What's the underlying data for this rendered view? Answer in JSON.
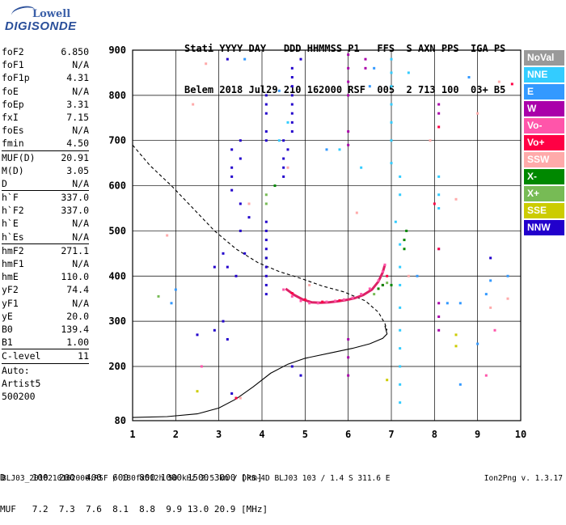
{
  "logo": {
    "line1": "Lowell",
    "line2": "DIGISONDE"
  },
  "header": {
    "line1": "Stati YYYY DAY   DDD HHMMSS P1   FFS  S AXN PPS  IGA PS",
    "line2": "Belem 2018 Jul29 210 162000 RSF  005  2 713 100  03+ B5"
  },
  "params": [
    {
      "label": "foF2",
      "value": "6.850"
    },
    {
      "label": "foF1",
      "value": "N/A"
    },
    {
      "label": "foF1p",
      "value": "4.31"
    },
    {
      "label": "foE",
      "value": "N/A"
    },
    {
      "label": "foEp",
      "value": "3.31"
    },
    {
      "label": "fxI",
      "value": "7.15"
    },
    {
      "label": "foEs",
      "value": "N/A"
    },
    {
      "label": "fmin",
      "value": "4.50"
    },
    {
      "label": "MUF(D)",
      "value": "20.91",
      "sep": true
    },
    {
      "label": "M(D)",
      "value": "3.05"
    },
    {
      "label": "D",
      "value": "N/A"
    },
    {
      "label": "h`F",
      "value": "337.0",
      "sep": true
    },
    {
      "label": "h`F2",
      "value": "337.0"
    },
    {
      "label": "h`E",
      "value": "N/A"
    },
    {
      "label": "h`Es",
      "value": "N/A"
    },
    {
      "label": "hmF2",
      "value": "271.1",
      "sep": true
    },
    {
      "label": "hmF1",
      "value": "N/A"
    },
    {
      "label": "hmE",
      "value": "110.0"
    },
    {
      "label": "yF2",
      "value": "74.4"
    },
    {
      "label": "yF1",
      "value": "N/A"
    },
    {
      "label": "yE",
      "value": "20.0"
    },
    {
      "label": "B0",
      "value": "139.4"
    },
    {
      "label": "B1",
      "value": "1.00"
    },
    {
      "label": "C-level",
      "value": "11",
      "sep": true
    },
    {
      "label": "Auto:",
      "value": "",
      "sep": true
    },
    {
      "label": "Artist5",
      "value": ""
    },
    {
      "label": "500200",
      "value": ""
    }
  ],
  "legend": [
    {
      "label": "NoVal",
      "color": "#999999"
    },
    {
      "label": "NNE",
      "color": "#33ccff"
    },
    {
      "label": "E",
      "color": "#3399ff"
    },
    {
      "label": "W",
      "color": "#aa00aa"
    },
    {
      "label": "Vo-",
      "color": "#ff55aa"
    },
    {
      "label": "Vo+",
      "color": "#ff0044"
    },
    {
      "label": "SSW",
      "color": "#ffaaaa"
    },
    {
      "label": "X-",
      "color": "#008800"
    },
    {
      "label": "X+",
      "color": "#77bb55"
    },
    {
      "label": "SSE",
      "color": "#cccc00"
    },
    {
      "label": "NNW",
      "color": "#2200cc"
    }
  ],
  "footer": {
    "line1": "D     100  200  400  600  800 1000 1500 3000 [km]",
    "line2": "MUF   7.2  7.3  7.6  8.1  8.8  9.9 13.0 20.9 [MHz]",
    "file": "BLJ03_2018210162000.RSF / 180fx512h 50 kHz 2.5 km / DPS-4D BLJ03 103 / 1.4 S 311.6 E",
    "version": "Ion2Png v. 1.3.17"
  },
  "chart_data": {
    "type": "scatter",
    "title": "",
    "xlabel": "",
    "ylabel": "",
    "xlim": [
      1,
      10
    ],
    "ylim": [
      80,
      900
    ],
    "xticks": [
      1,
      2,
      3,
      4,
      5,
      6,
      7,
      8,
      9,
      10
    ],
    "yticks": [
      80,
      200,
      300,
      400,
      500,
      600,
      700,
      800,
      900
    ],
    "grid": true,
    "series": [
      {
        "name": "NNE",
        "color": "#33ccff",
        "points": [
          [
            7.0,
            880
          ],
          [
            7.0,
            850
          ],
          [
            7.0,
            820
          ],
          [
            7.0,
            780
          ],
          [
            7.0,
            740
          ],
          [
            7.0,
            700
          ],
          [
            7.0,
            650
          ],
          [
            7.2,
            620
          ],
          [
            7.2,
            580
          ],
          [
            7.1,
            520
          ],
          [
            7.2,
            470
          ],
          [
            7.2,
            420
          ],
          [
            7.2,
            380
          ],
          [
            7.2,
            330
          ],
          [
            7.2,
            280
          ],
          [
            7.2,
            240
          ],
          [
            7.2,
            200
          ],
          [
            7.2,
            160
          ],
          [
            7.2,
            120
          ],
          [
            8.1,
            620
          ],
          [
            8.1,
            580
          ],
          [
            8.1,
            550
          ],
          [
            7.4,
            850
          ],
          [
            6.3,
            640
          ],
          [
            5.8,
            680
          ],
          [
            4.4,
            700
          ],
          [
            4.6,
            740
          ]
        ]
      },
      {
        "name": "E",
        "color": "#3399ff",
        "points": [
          [
            8.3,
            340
          ],
          [
            7.6,
            400
          ],
          [
            8.1,
            460
          ],
          [
            2.0,
            370
          ],
          [
            1.9,
            340
          ],
          [
            6.5,
            820
          ],
          [
            6.6,
            860
          ],
          [
            5.5,
            680
          ],
          [
            4.4,
            810
          ],
          [
            3.6,
            880
          ],
          [
            8.8,
            840
          ],
          [
            9.7,
            400
          ],
          [
            9.3,
            390
          ],
          [
            9.2,
            360
          ],
          [
            9.0,
            250
          ],
          [
            8.6,
            160
          ],
          [
            8.6,
            340
          ]
        ]
      },
      {
        "name": "W",
        "color": "#aa00aa",
        "points": [
          [
            6.0,
            890
          ],
          [
            6.0,
            860
          ],
          [
            6.0,
            830
          ],
          [
            6.0,
            800
          ],
          [
            6.4,
            880
          ],
          [
            6.4,
            860
          ],
          [
            6.0,
            720
          ],
          [
            6.0,
            690
          ],
          [
            8.1,
            780
          ],
          [
            8.1,
            760
          ],
          [
            6.0,
            260
          ],
          [
            6.0,
            220
          ],
          [
            6.0,
            180
          ],
          [
            8.1,
            340
          ],
          [
            8.1,
            310
          ],
          [
            8.1,
            280
          ]
        ]
      },
      {
        "name": "Vo-",
        "color": "#ff55aa",
        "points": [
          [
            4.5,
            370
          ],
          [
            4.7,
            355
          ],
          [
            4.9,
            345
          ],
          [
            5.1,
            340
          ],
          [
            5.3,
            340
          ],
          [
            5.5,
            343
          ],
          [
            5.7,
            345
          ],
          [
            5.9,
            348
          ],
          [
            6.1,
            352
          ],
          [
            6.3,
            360
          ],
          [
            6.5,
            372
          ],
          [
            6.7,
            390
          ],
          [
            6.8,
            410
          ],
          [
            6.85,
            425
          ],
          [
            9.2,
            180
          ],
          [
            9.4,
            280
          ],
          [
            2.6,
            200
          ]
        ]
      },
      {
        "name": "Vo+",
        "color": "#ff0044",
        "points": [
          [
            9.8,
            825
          ],
          [
            8.1,
            730
          ],
          [
            6.9,
            400
          ],
          [
            6.8,
            380
          ],
          [
            4.7,
            362
          ],
          [
            5.0,
            348
          ],
          [
            5.4,
            343
          ],
          [
            5.8,
            346
          ],
          [
            8.0,
            560
          ],
          [
            3.4,
            130
          ],
          [
            8.1,
            460
          ]
        ]
      },
      {
        "name": "SSW",
        "color": "#ffaaaa",
        "points": [
          [
            2.7,
            870
          ],
          [
            2.4,
            780
          ],
          [
            3.5,
            130
          ],
          [
            7.4,
            400
          ],
          [
            9.5,
            830
          ],
          [
            9.7,
            350
          ],
          [
            8.5,
            570
          ],
          [
            4.6,
            640
          ],
          [
            1.8,
            490
          ],
          [
            3.7,
            560
          ],
          [
            9.0,
            760
          ],
          [
            9.3,
            330
          ],
          [
            7.9,
            700
          ],
          [
            6.2,
            540
          ],
          [
            5.1,
            380
          ]
        ]
      },
      {
        "name": "X-",
        "color": "#008800",
        "points": [
          [
            6.7,
            372
          ],
          [
            6.8,
            380
          ],
          [
            7.3,
            480
          ],
          [
            7.35,
            500
          ],
          [
            7.3,
            460
          ],
          [
            4.3,
            600
          ],
          [
            4.1,
            440
          ],
          [
            7.0,
            380
          ]
        ]
      },
      {
        "name": "X+",
        "color": "#77bb55",
        "points": [
          [
            4.1,
            560
          ],
          [
            4.1,
            580
          ],
          [
            6.6,
            360
          ],
          [
            6.9,
            385
          ],
          [
            1.6,
            355
          ]
        ]
      },
      {
        "name": "SSE",
        "color": "#cccc00",
        "points": [
          [
            8.5,
            270
          ],
          [
            8.5,
            245
          ],
          [
            2.5,
            145
          ],
          [
            6.9,
            170
          ]
        ]
      },
      {
        "name": "NNW",
        "color": "#2200cc",
        "points": [
          [
            4.1,
            520
          ],
          [
            4.1,
            500
          ],
          [
            4.1,
            480
          ],
          [
            4.1,
            460
          ],
          [
            4.1,
            440
          ],
          [
            4.1,
            420
          ],
          [
            4.1,
            400
          ],
          [
            4.1,
            380
          ],
          [
            4.1,
            360
          ],
          [
            4.1,
            780
          ],
          [
            4.1,
            800
          ],
          [
            4.1,
            760
          ],
          [
            4.1,
            720
          ],
          [
            4.1,
            700
          ],
          [
            4.5,
            700
          ],
          [
            4.5,
            660
          ],
          [
            4.5,
            640
          ],
          [
            4.5,
            620
          ],
          [
            4.6,
            680
          ],
          [
            4.7,
            860
          ],
          [
            4.7,
            840
          ],
          [
            4.7,
            820
          ],
          [
            4.7,
            800
          ],
          [
            4.7,
            780
          ],
          [
            4.7,
            760
          ],
          [
            4.7,
            740
          ],
          [
            4.7,
            720
          ],
          [
            3.3,
            680
          ],
          [
            3.3,
            640
          ],
          [
            3.3,
            620
          ],
          [
            3.3,
            590
          ],
          [
            3.2,
            880
          ],
          [
            3.5,
            700
          ],
          [
            3.5,
            660
          ],
          [
            3.5,
            560
          ],
          [
            3.7,
            530
          ],
          [
            3.5,
            500
          ],
          [
            3.6,
            450
          ],
          [
            3.4,
            400
          ],
          [
            3.2,
            420
          ],
          [
            3.1,
            450
          ],
          [
            2.9,
            420
          ],
          [
            2.9,
            280
          ],
          [
            3.1,
            300
          ],
          [
            3.2,
            260
          ],
          [
            2.5,
            270
          ],
          [
            3.3,
            140
          ],
          [
            4.9,
            880
          ],
          [
            4.7,
            200
          ],
          [
            4.9,
            180
          ],
          [
            9.3,
            440
          ]
        ]
      }
    ],
    "traces": [
      {
        "name": "dashed-profile",
        "style": "dashed",
        "points": [
          [
            1.0,
            690
          ],
          [
            1.4,
            645
          ],
          [
            1.9,
            600
          ],
          [
            2.4,
            550
          ],
          [
            2.9,
            500
          ],
          [
            3.4,
            460
          ],
          [
            3.9,
            430
          ],
          [
            4.4,
            410
          ],
          [
            4.9,
            395
          ],
          [
            5.4,
            378
          ],
          [
            5.9,
            365
          ],
          [
            6.4,
            345
          ],
          [
            6.7,
            320
          ],
          [
            6.85,
            295
          ],
          [
            6.9,
            280
          ]
        ]
      },
      {
        "name": "solid-profile",
        "style": "solid",
        "points": [
          [
            1.0,
            87
          ],
          [
            1.8,
            89
          ],
          [
            2.5,
            95
          ],
          [
            3.0,
            108
          ],
          [
            3.4,
            128
          ],
          [
            3.8,
            155
          ],
          [
            4.2,
            185
          ],
          [
            4.6,
            205
          ],
          [
            5.0,
            218
          ],
          [
            5.6,
            230
          ],
          [
            6.1,
            240
          ],
          [
            6.5,
            250
          ],
          [
            6.8,
            262
          ],
          [
            6.9,
            272
          ],
          [
            6.85,
            290
          ]
        ]
      },
      {
        "name": "red-trace",
        "style": "solid",
        "points": [
          [
            4.55,
            372
          ],
          [
            4.75,
            358
          ],
          [
            4.95,
            348
          ],
          [
            5.15,
            342
          ],
          [
            5.35,
            341
          ],
          [
            5.55,
            342
          ],
          [
            5.75,
            344
          ],
          [
            5.95,
            347
          ],
          [
            6.15,
            351
          ],
          [
            6.35,
            358
          ],
          [
            6.55,
            370
          ],
          [
            6.7,
            388
          ],
          [
            6.8,
            408
          ],
          [
            6.85,
            425
          ]
        ]
      }
    ]
  }
}
